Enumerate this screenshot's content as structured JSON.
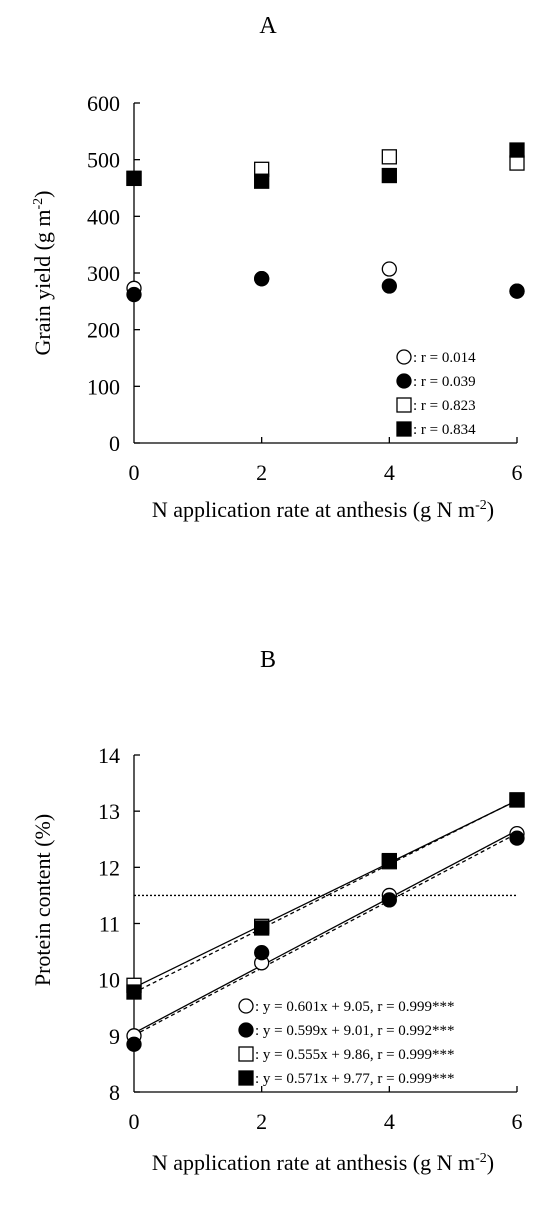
{
  "chart_data": [
    {
      "panel": "A",
      "type": "scatter",
      "xlabel": "N application rate at anthesis (g N m",
      "xlabel_sup": "-2",
      "xlabel_close": ")",
      "ylabel": "Grain yield (g m",
      "ylabel_sup": "-2",
      "ylabel_close": ")",
      "xlim": [
        0,
        6
      ],
      "ylim": [
        0,
        600
      ],
      "xticks": [
        "0",
        "2",
        "4",
        "6"
      ],
      "xtick_values": [
        0,
        2,
        4,
        6
      ],
      "yticks": [
        "0",
        "100",
        "200",
        "300",
        "400",
        "500",
        "600"
      ],
      "ytick_values": [
        0,
        100,
        200,
        300,
        400,
        500,
        600
      ],
      "grid": false,
      "legend_position": "bottom-right",
      "series": [
        {
          "marker": "open-circle",
          "legend": "r = 0.014",
          "x": [
            0,
            2,
            4,
            6
          ],
          "y": [
            273,
            290,
            307,
            268
          ]
        },
        {
          "marker": "filled-circle",
          "legend": "r = 0.039",
          "x": [
            0,
            2,
            4,
            6
          ],
          "y": [
            262,
            290,
            277,
            268
          ]
        },
        {
          "marker": "open-square",
          "legend": "r = 0.823",
          "x": [
            0,
            2,
            4,
            6
          ],
          "y": [
            467,
            483,
            505,
            494
          ]
        },
        {
          "marker": "filled-square",
          "legend": "r = 0.834",
          "x": [
            0,
            2,
            4,
            6
          ],
          "y": [
            467,
            462,
            472,
            517
          ]
        }
      ]
    },
    {
      "panel": "B",
      "type": "scatter",
      "xlabel": "N application rate at anthesis (g N m",
      "xlabel_sup": "-2",
      "xlabel_close": ")",
      "ylabel": "Protein content (%)",
      "xlim": [
        0,
        6
      ],
      "ylim": [
        8,
        14
      ],
      "xticks": [
        "0",
        "2",
        "4",
        "6"
      ],
      "xtick_values": [
        0,
        2,
        4,
        6
      ],
      "yticks": [
        "8",
        "9",
        "10",
        "11",
        "12",
        "13",
        "14"
      ],
      "ytick_values": [
        8,
        9,
        10,
        11,
        12,
        13,
        14
      ],
      "grid": false,
      "reference_line_y": 11.5,
      "legend_position": "bottom-right",
      "series": [
        {
          "marker": "open-circle",
          "legend": "y = 0.601x + 9.05, r = 0.999***",
          "slope": 0.601,
          "intercept": 9.05,
          "line": "solid",
          "x": [
            0,
            2,
            4,
            6
          ],
          "y": [
            9.0,
            10.3,
            11.5,
            12.6
          ]
        },
        {
          "marker": "filled-circle",
          "legend": "y = 0.599x + 9.01, r = 0.992***",
          "slope": 0.599,
          "intercept": 9.01,
          "line": "dashed",
          "x": [
            0,
            2,
            4,
            6
          ],
          "y": [
            8.85,
            10.48,
            11.42,
            12.52
          ]
        },
        {
          "marker": "open-square",
          "legend": "y = 0.555x + 9.86, r = 0.999***",
          "slope": 0.555,
          "intercept": 9.86,
          "line": "solid",
          "x": [
            0,
            2,
            4,
            6
          ],
          "y": [
            9.9,
            10.95,
            12.1,
            13.2
          ]
        },
        {
          "marker": "filled-square",
          "legend": "y = 0.571x + 9.77, r = 0.999***",
          "slope": 0.571,
          "intercept": 9.77,
          "line": "dashed",
          "x": [
            0,
            2,
            4,
            6
          ],
          "y": [
            9.78,
            10.92,
            12.12,
            13.2
          ]
        }
      ]
    }
  ]
}
